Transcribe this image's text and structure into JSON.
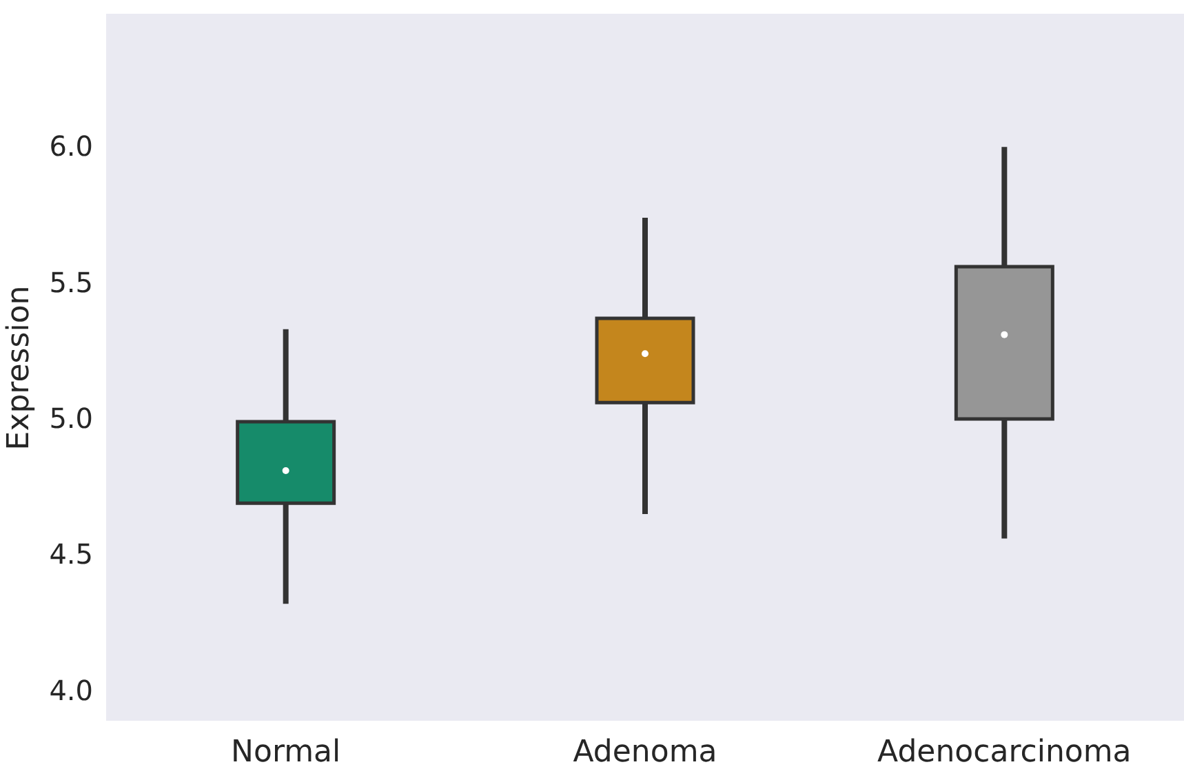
{
  "chart_data": {
    "type": "box",
    "ylabel": "Expression",
    "categories": [
      "Normal",
      "Adenoma",
      "Adenocarcinoma"
    ],
    "colors": [
      "#168b6a",
      "#c4861d",
      "#969696"
    ],
    "boxes": [
      {
        "low": 4.32,
        "q1": 4.69,
        "median": 4.81,
        "q3": 4.99,
        "high": 5.33
      },
      {
        "low": 4.65,
        "q1": 5.06,
        "median": 5.24,
        "q3": 5.37,
        "high": 5.74
      },
      {
        "low": 4.56,
        "q1": 5.0,
        "median": 5.31,
        "q3": 5.56,
        "high": 6.0
      }
    ],
    "ylim": [
      3.89,
      6.49
    ],
    "yticks": [
      {
        "value": 4.0,
        "label": "4.0"
      },
      {
        "value": 4.5,
        "label": "4.5"
      },
      {
        "value": 5.0,
        "label": "5.0"
      },
      {
        "value": 5.5,
        "label": "5.5"
      },
      {
        "value": 6.0,
        "label": "6.0"
      }
    ],
    "grid": false
  }
}
